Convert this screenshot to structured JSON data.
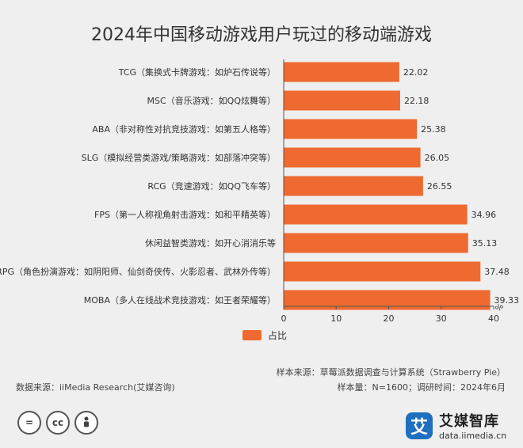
{
  "title": "2024年中国移动游戏用户玩过的移动端游戏",
  "chart_data": {
    "type": "bar",
    "orientation": "horizontal",
    "categories": [
      "TCG（集换式卡牌游戏：如炉石传说等）",
      "MSC（音乐游戏：如QQ炫舞等）",
      "ABA（非对称性对抗竞技游戏：如第五人格等）",
      "SLG（模拟经营类游戏/策略游戏：如部落冲突等）",
      "RCG（竞速游戏：如QQ飞车等）",
      "FPS（第一人称视角射击游戏：如和平精英等）",
      "休闲益智类游戏：如开心消消乐等",
      "RPG（角色扮演游戏：如阴阳师、仙剑奇侠传、火影忍者、武林外传等）",
      "MOBA（多人在线战术竞技游戏：如王者荣耀等）"
    ],
    "series": [
      {
        "name": "占比",
        "values": [
          22.02,
          22.18,
          25.38,
          26.05,
          26.55,
          34.96,
          35.13,
          37.48,
          39.33
        ]
      }
    ],
    "value_labels": [
      "22.02",
      "22.18",
      "25.38",
      "26.05",
      "26.55",
      "34.96",
      "35.13",
      "37.48",
      "39.33"
    ],
    "xlim": [
      0,
      40
    ],
    "xticks": [
      "0",
      "10",
      "20",
      "30",
      "40"
    ],
    "unit_label": "%",
    "color": "#ee6a30",
    "legend": "bottom"
  },
  "footer": {
    "source_left": "数据来源：iiMedia Research(艾媒咨询)",
    "sample_source": "样本来源：草莓派数据调查与计算系统（Strawberry Pie）",
    "sample_size": "样本量：N=1600；调研时间：2024年6月"
  },
  "brand": {
    "logo_char": "艾",
    "name": "艾媒智库",
    "url": "data.iimedia.cn"
  },
  "license_icons": [
    "=",
    "cc",
    "person"
  ]
}
